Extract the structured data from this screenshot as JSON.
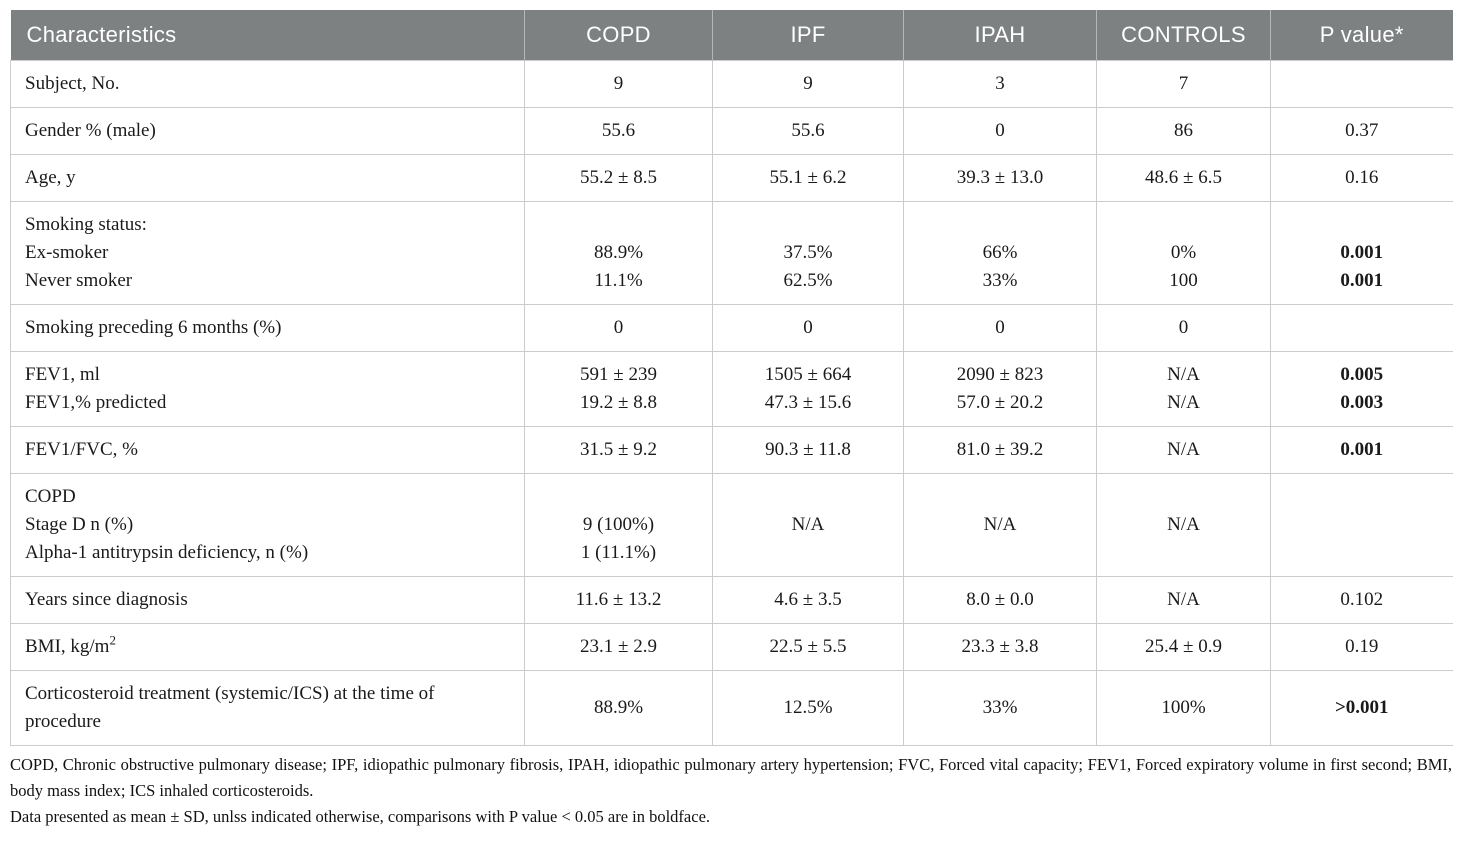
{
  "table": {
    "columns": [
      "Characteristics",
      "COPD",
      "IPF",
      "IPAH",
      "CONTROLS",
      "P value*"
    ],
    "rows": [
      {
        "cells": [
          [
            {
              "text": "Subject, No."
            }
          ],
          [
            {
              "text": "9"
            }
          ],
          [
            {
              "text": "9"
            }
          ],
          [
            {
              "text": "3"
            }
          ],
          [
            {
              "text": "7"
            }
          ],
          []
        ]
      },
      {
        "cells": [
          [
            {
              "text": "Gender % (male)"
            }
          ],
          [
            {
              "text": "55.6"
            }
          ],
          [
            {
              "text": "55.6"
            }
          ],
          [
            {
              "text": "0"
            }
          ],
          [
            {
              "text": "86"
            }
          ],
          [
            {
              "text": "0.37"
            }
          ]
        ]
      },
      {
        "cells": [
          [
            {
              "text": "Age, y"
            }
          ],
          [
            {
              "text": "55.2 ± 8.5"
            }
          ],
          [
            {
              "text": "55.1 ± 6.2"
            }
          ],
          [
            {
              "text": "39.3 ± 13.0"
            }
          ],
          [
            {
              "text": "48.6 ± 6.5"
            }
          ],
          [
            {
              "text": "0.16"
            }
          ]
        ]
      },
      {
        "cells": [
          [
            {
              "text": "Smoking status:"
            },
            {
              "text": "Ex-smoker"
            },
            {
              "text": "Never smoker"
            }
          ],
          [
            {
              "text": ""
            },
            {
              "text": "88.9%"
            },
            {
              "text": "11.1%"
            }
          ],
          [
            {
              "text": ""
            },
            {
              "text": "37.5%"
            },
            {
              "text": "62.5%"
            }
          ],
          [
            {
              "text": ""
            },
            {
              "text": "66%"
            },
            {
              "text": "33%"
            }
          ],
          [
            {
              "text": ""
            },
            {
              "text": "0%"
            },
            {
              "text": "100"
            }
          ],
          [
            {
              "text": ""
            },
            {
              "text": "0.001",
              "bold": true
            },
            {
              "text": "0.001",
              "bold": true
            }
          ]
        ]
      },
      {
        "cells": [
          [
            {
              "text": "Smoking preceding 6 months (%)"
            }
          ],
          [
            {
              "text": "0"
            }
          ],
          [
            {
              "text": "0"
            }
          ],
          [
            {
              "text": "0"
            }
          ],
          [
            {
              "text": "0"
            }
          ],
          []
        ]
      },
      {
        "cells": [
          [
            {
              "text": "FEV1, ml"
            },
            {
              "text": "FEV1,% predicted"
            }
          ],
          [
            {
              "text": "591 ± 239"
            },
            {
              "text": "19.2 ± 8.8"
            }
          ],
          [
            {
              "text": "1505 ± 664"
            },
            {
              "text": "47.3 ± 15.6"
            }
          ],
          [
            {
              "text": "2090 ± 823"
            },
            {
              "text": "57.0 ± 20.2"
            }
          ],
          [
            {
              "text": "N/A"
            },
            {
              "text": "N/A"
            }
          ],
          [
            {
              "text": "0.005",
              "bold": true
            },
            {
              "text": "0.003",
              "bold": true
            }
          ]
        ]
      },
      {
        "cells": [
          [
            {
              "text": "FEV1/FVC, %"
            }
          ],
          [
            {
              "text": "31.5 ± 9.2"
            }
          ],
          [
            {
              "text": "90.3 ± 11.8"
            }
          ],
          [
            {
              "text": "81.0 ± 39.2"
            }
          ],
          [
            {
              "text": "N/A"
            }
          ],
          [
            {
              "text": "0.001",
              "bold": true
            }
          ]
        ]
      },
      {
        "cells": [
          [
            {
              "text": "COPD"
            },
            {
              "text": "Stage D n (%)"
            },
            {
              "text": "Alpha-1 antitrypsin deficiency, n (%)"
            }
          ],
          [
            {
              "text": ""
            },
            {
              "text": "9 (100%)"
            },
            {
              "text": "1 (11.1%)"
            }
          ],
          [
            {
              "text": "N/A"
            }
          ],
          [
            {
              "text": "N/A"
            }
          ],
          [
            {
              "text": "N/A"
            }
          ],
          []
        ]
      },
      {
        "cells": [
          [
            {
              "text": "Years since diagnosis"
            }
          ],
          [
            {
              "text": "11.6 ± 13.2"
            }
          ],
          [
            {
              "text": "4.6 ± 3.5"
            }
          ],
          [
            {
              "text": "8.0 ± 0.0"
            }
          ],
          [
            {
              "text": "N/A"
            }
          ],
          [
            {
              "text": "0.102"
            }
          ]
        ]
      },
      {
        "cells": [
          [
            {
              "text": "BMI, kg/m",
              "sup": "2"
            }
          ],
          [
            {
              "text": "23.1 ± 2.9"
            }
          ],
          [
            {
              "text": "22.5 ± 5.5"
            }
          ],
          [
            {
              "text": "23.3 ± 3.8"
            }
          ],
          [
            {
              "text": "25.4 ± 0.9"
            }
          ],
          [
            {
              "text": "0.19"
            }
          ]
        ]
      },
      {
        "cells": [
          [
            {
              "text": "Corticosteroid treatment (systemic/ICS) at the time of procedure"
            }
          ],
          [
            {
              "text": "88.9%"
            }
          ],
          [
            {
              "text": "12.5%"
            }
          ],
          [
            {
              "text": "33%"
            }
          ],
          [
            {
              "text": "100%"
            }
          ],
          [
            {
              "text": ">0.001",
              "bold": true
            }
          ]
        ]
      }
    ]
  },
  "footnotes": {
    "abbreviations": "COPD, Chronic obstructive pulmonary disease; IPF, idiopathic pulmonary fibrosis, IPAH, idiopathic pulmonary artery hypertension; FVC, Forced vital capacity; FEV1, Forced expiratory volume in first second; BMI, body mass index; ICS inhaled corticosteroids.",
    "note": "Data presented as mean ± SD, unlss indicated otherwise, comparisons with P value < 0.05 are in boldface."
  },
  "colors": {
    "header_bg": "#7e8182",
    "header_text": "#ffffff",
    "grid_line": "#cbcccc",
    "body_text": "#1a1a1a"
  }
}
